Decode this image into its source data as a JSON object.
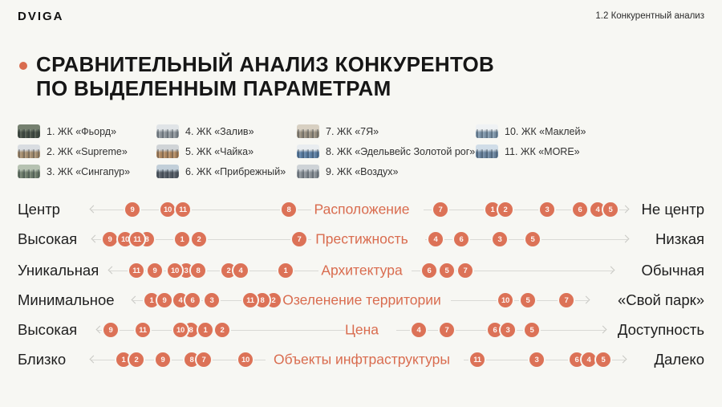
{
  "header": {
    "logo": "DVIGA",
    "section_label": "1.2 Конкурентный анализ"
  },
  "title": {
    "line1": "СРАВНИТЕЛЬНЫЙ АНАЛИЗ КОНКУРЕНТОВ",
    "line2": "ПО ВЫДЕЛЕННЫМ ПАРАМЕТРАМ"
  },
  "legend": {
    "columns": [
      [
        {
          "num": "1",
          "name": "ЖК «Фьорд»",
          "thumb": [
            "#75806f",
            "#454f44"
          ]
        },
        {
          "num": "2",
          "name": "ЖК «Supreme»",
          "thumb": [
            "#d9dde1",
            "#a78f6f"
          ]
        },
        {
          "num": "3",
          "name": "ЖК «Сингапур»",
          "thumb": [
            "#b6c2b1",
            "#6e7d6b"
          ]
        }
      ],
      [
        {
          "num": "4",
          "name": "ЖК «Залив»",
          "thumb": [
            "#e0e4e7",
            "#8e969c"
          ]
        },
        {
          "num": "5",
          "name": "ЖК «Чайка»",
          "thumb": [
            "#d0d4d7",
            "#b28a61"
          ]
        },
        {
          "num": "6",
          "name": "ЖК «Прибрежный»",
          "thumb": [
            "#c2cfd9",
            "#575f68"
          ]
        }
      ],
      [
        {
          "num": "7",
          "name": "ЖК «7Я»",
          "thumb": [
            "#d8d0c2",
            "#999080"
          ]
        },
        {
          "num": "8",
          "name": "ЖК «Эдельвейс Золотой рог»",
          "thumb": [
            "#e9edf0",
            "#5d80a5"
          ]
        },
        {
          "num": "9",
          "name": "ЖК «Воздух»",
          "thumb": [
            "#ced3d7",
            "#8a9197"
          ]
        }
      ],
      [
        {
          "num": "10",
          "name": "ЖК «Маклей»",
          "thumb": [
            "#eff2f4",
            "#7f97ac"
          ]
        },
        {
          "num": "11",
          "name": "ЖК «MORE»",
          "thumb": [
            "#d0dde8",
            "#6b86a0"
          ]
        }
      ]
    ]
  },
  "chart_data": {
    "type": "scatter",
    "title": "Сравнительный анализ конкурентов по выделенным параметрам",
    "note": "Each numbered dot is a competitor placed between two poles; x is pixel position on the 900px-wide canvas, dots listed in paint order (later on top).",
    "competitors": [
      "ЖК «Фьорд»",
      "ЖК «Supreme»",
      "ЖК «Сингапур»",
      "ЖК «Залив»",
      "ЖК «Чайка»",
      "ЖК «Прибрежный»",
      "ЖК «7Я»",
      "ЖК «Эдельвейс Золотой рог»",
      "ЖК «Воздух»",
      "ЖК «Маклей»",
      "ЖК «MORE»"
    ],
    "rows": [
      {
        "parameter": "Расположение",
        "left_pole": "Центр",
        "right_pole": "Не центр",
        "left_line": [
          114,
          388
        ],
        "right_line": [
          528,
          782
        ],
        "dots": [
          [
            9,
            165
          ],
          [
            10,
            209
          ],
          [
            11,
            228
          ],
          [
            8,
            360
          ],
          [
            7,
            549
          ],
          [
            1,
            614
          ],
          [
            2,
            630
          ],
          [
            3,
            682
          ],
          [
            6,
            723
          ],
          [
            4,
            745
          ],
          [
            5,
            761
          ]
        ]
      },
      {
        "parameter": "Престижность",
        "left_pole": "Высокая",
        "right_pole": "Низкая",
        "left_line": [
          116,
          388
        ],
        "right_line": [
          530,
          782
        ],
        "dots": [
          [
            9,
            137
          ],
          [
            10,
            156
          ],
          [
            8,
            183
          ],
          [
            11,
            171
          ],
          [
            1,
            227
          ],
          [
            2,
            248
          ],
          [
            7,
            373
          ],
          [
            4,
            543
          ],
          [
            6,
            575
          ],
          [
            3,
            623
          ],
          [
            5,
            664
          ]
        ]
      },
      {
        "parameter": "Архитектура",
        "left_pole": "Уникальная",
        "right_pole": "Обычная",
        "left_line": [
          137,
          397
        ],
        "right_line": [
          513,
          764
        ],
        "dots": [
          [
            11,
            170
          ],
          [
            9,
            193
          ],
          [
            3,
            232
          ],
          [
            10,
            218
          ],
          [
            8,
            247
          ],
          [
            2,
            285
          ],
          [
            4,
            300
          ],
          [
            1,
            356
          ],
          [
            6,
            535
          ],
          [
            5,
            557
          ],
          [
            7,
            580
          ]
        ]
      },
      {
        "parameter": "Озеленение территории",
        "left_pole": "Минимальное",
        "right_pole": "«Свой парк»",
        "left_line": [
          166,
          349
        ],
        "right_line": [
          562,
          733
        ],
        "dots": [
          [
            1,
            189
          ],
          [
            9,
            205
          ],
          [
            4,
            225
          ],
          [
            6,
            240
          ],
          [
            3,
            264
          ],
          [
            2,
            341
          ],
          [
            8,
            327
          ],
          [
            11,
            312
          ],
          [
            10,
            630
          ],
          [
            5,
            658
          ],
          [
            7,
            706
          ]
        ]
      },
      {
        "parameter": "Цена",
        "left_pole": "Высокая",
        "right_pole": "Доступность",
        "left_line": [
          122,
          430
        ],
        "right_line": [
          494,
          754
        ],
        "dots": [
          [
            9,
            138
          ],
          [
            11,
            178
          ],
          [
            8,
            238
          ],
          [
            10,
            225
          ],
          [
            1,
            256
          ],
          [
            2,
            277
          ],
          [
            4,
            522
          ],
          [
            7,
            557
          ],
          [
            6,
            617
          ],
          [
            3,
            633
          ],
          [
            5,
            663
          ]
        ]
      },
      {
        "parameter": "Объекты инфтраструктуры",
        "left_pole": "Близко",
        "right_pole": "Далеко",
        "left_line": [
          114,
          331
        ],
        "right_line": [
          578,
          779
        ],
        "dots": [
          [
            1,
            154
          ],
          [
            2,
            170
          ],
          [
            9,
            203
          ],
          [
            8,
            239
          ],
          [
            7,
            254
          ],
          [
            10,
            306
          ],
          [
            11,
            595
          ],
          [
            3,
            669
          ],
          [
            6,
            719
          ],
          [
            4,
            734
          ],
          [
            5,
            752
          ]
        ]
      }
    ]
  },
  "colors": {
    "background": "#F7F7F3",
    "accent": "#DC7257",
    "param_label": "#D96C4F",
    "line": "#D9D9D5",
    "text": "#1B1B1B"
  }
}
